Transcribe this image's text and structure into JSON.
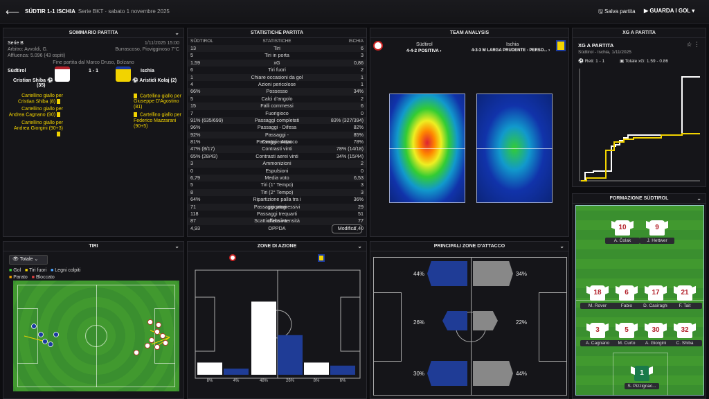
{
  "header": {
    "match": "SÜDTIR 1-1 ISCHIA",
    "subtitle": "Serie BKT · sabato 1 novembre 2025",
    "save_label": "Salva partita",
    "watch_label": "GUARDA I GOL"
  },
  "summary": {
    "title": "SOMMARIO PARTITA",
    "competition": "Serie B",
    "date": "1/11/2025 15:00",
    "referee": "Arbitro: Avvoldi, G.",
    "weather": "Burrascoso, Piovigginoso 7°C",
    "attendance": "Affluenza: 5.096 (43 ospiti)",
    "venue": "Fine partita dal Marco Druso, Bolzano",
    "home": "Südtirol",
    "away": "Ischia",
    "score": "1 - 1",
    "home_scorer": "Cristian Shiba",
    "home_scorer_min": "(35)",
    "away_scorer": "Aristidi Kolaj (2)",
    "home_cards": [
      "Cartellino giallo per Cristian Shiba (8)",
      "Cartellino giallo per Andrea Cagnano (90)",
      "Cartellino giallo per Andrea Giorgini (90+3)"
    ],
    "away_cards": [
      "Cartellino giallo per Giuseppe D'Agostino (81)",
      "Cartellino giallo per Federico Mazzarani (90+5)"
    ]
  },
  "stats": {
    "title": "STATISTICHE PARTITA",
    "col_home": "SÜDTIROL",
    "col_mid": "STATISTICHE",
    "col_away": "ISCHIA",
    "rows": [
      {
        "h": "13",
        "n": "Tiri",
        "a": "6"
      },
      {
        "h": "5",
        "n": "Tiri in porta",
        "a": "3"
      },
      {
        "h": "1,59",
        "n": "xG",
        "a": "0,86"
      },
      {
        "h": "6",
        "n": "Tiri fuori",
        "a": "2"
      },
      {
        "h": "1",
        "n": "Chiare occasioni da gol",
        "a": "1"
      },
      {
        "h": "4",
        "n": "Azioni pericolose",
        "a": "1"
      },
      {
        "h": "66%",
        "n": "Possesso",
        "a": "34%"
      },
      {
        "h": "5",
        "n": "Calci d'angolo",
        "a": "2"
      },
      {
        "h": "15",
        "n": "Falli commessi",
        "a": "6"
      },
      {
        "h": "7",
        "n": "Fuorigioco",
        "a": "0"
      },
      {
        "h": "91% (635/699)",
        "n": "Passaggi completati",
        "a": "83% (327/394)"
      },
      {
        "h": "96%",
        "n": "Passaggi - Difesa",
        "a": "82%"
      },
      {
        "h": "92%",
        "n": "Passaggi - Centrocampo",
        "a": "85%"
      },
      {
        "h": "81%",
        "n": "Passaggi - Attacco",
        "a": "78%"
      },
      {
        "h": "47% (8/17)",
        "n": "Contrasti vinti",
        "a": "78% (14/18)"
      },
      {
        "h": "65% (28/43)",
        "n": "Contrasti aerei vinti",
        "a": "34% (15/44)"
      },
      {
        "h": "3",
        "n": "Ammonizioni",
        "a": "2"
      },
      {
        "h": "0",
        "n": "Espulsioni",
        "a": "0"
      },
      {
        "h": "6,79",
        "n": "Media voto",
        "a": "6,53"
      },
      {
        "h": "5",
        "n": "Tiri (1° Tempo)",
        "a": "3"
      },
      {
        "h": "8",
        "n": "Tiri (2° Tempo)",
        "a": "3"
      },
      {
        "h": "64%",
        "n": "Ripartizione palla tra i giocatori",
        "a": "36%"
      },
      {
        "h": "71",
        "n": "Passaggi progressivi",
        "a": "29"
      },
      {
        "h": "118",
        "n": "Passaggi trequarti offensiva",
        "a": "51"
      },
      {
        "h": "87",
        "n": "Scatti d'alta intensità",
        "a": "77"
      },
      {
        "h": "4,93",
        "n": "OPPDA",
        "a": "7,40"
      }
    ],
    "modify_label": "Modifica"
  },
  "team_analysis": {
    "title": "TEAM ANALYSIS",
    "home": "Südtirol",
    "home_formation": "4-4-2 POSITIVA ›",
    "away": "Ischia",
    "away_formation": "4-3-3 M LARGA PRUDENTE - PERSO... ›"
  },
  "xg": {
    "title": "XG A PARTITA",
    "subtitle": "XG A PARTITA",
    "teams": "Südtirol - Ischia, 1/11/2025",
    "goals": "Reti: 1 - 1",
    "total": "Totale xG: 1.59 - 0.86"
  },
  "lineup": {
    "title": "FORMAZIONE SÜDTIROL",
    "players": [
      {
        "num": "10",
        "name": "A. Čolak"
      },
      {
        "num": "9",
        "name": "J. Hettwer"
      },
      {
        "num": "18",
        "name": "M. Rover"
      },
      {
        "num": "6",
        "name": "Fabio"
      },
      {
        "num": "17",
        "name": "D. Casiraghi"
      },
      {
        "num": "21",
        "name": "F. Tait"
      },
      {
        "num": "3",
        "name": "A. Cagnano"
      },
      {
        "num": "5",
        "name": "M. Curto"
      },
      {
        "num": "30",
        "name": "A. Giorgini"
      },
      {
        "num": "32",
        "name": "C. Shiba"
      },
      {
        "num": "1",
        "name": "S. Pizzignac..."
      }
    ]
  },
  "shots": {
    "title": "TIRI",
    "filter": "Totale",
    "legend": [
      "Gol",
      "Tiri fuori",
      "Legni colpiti",
      "Parato",
      "Bloccato"
    ]
  },
  "zones": {
    "title": "ZONE DI AZIONE",
    "home_pcts": [
      "8%",
      "48%",
      "8%"
    ],
    "away_pcts": [
      "4%",
      "26%",
      "6%"
    ],
    "values_home": [
      8,
      48,
      8
    ],
    "values_away": [
      4,
      26,
      6
    ]
  },
  "attack": {
    "title": "PRINCIPALI ZONE D'ATTACCO",
    "home": [
      "44%",
      "26%",
      "30%"
    ],
    "away": [
      "34%",
      "22%",
      "44%"
    ]
  },
  "colors": {
    "accent": "#1b3aa0",
    "pitch": "#3a8f2f",
    "yellow": "#f2d300"
  }
}
